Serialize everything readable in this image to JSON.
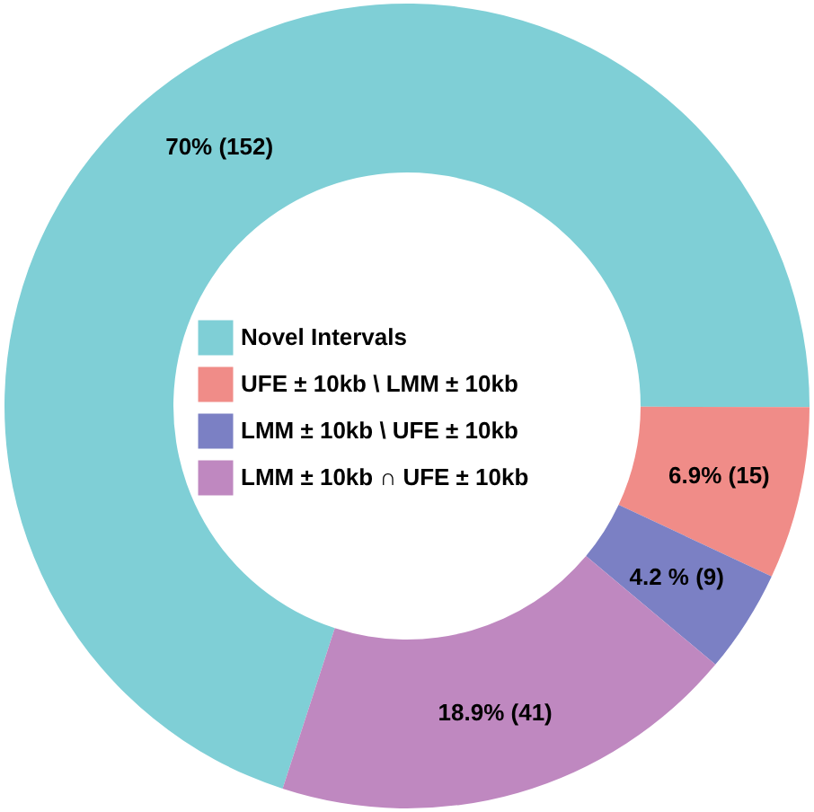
{
  "chart_data": {
    "type": "donut",
    "categories": [
      "Novel Intervals",
      "UFE ± 10kb \\ LMM ± 10kb",
      "LMM ± 10kb \\ UFE ± 10kb",
      "LMM ± 10kb ∩ UFE ± 10kb"
    ],
    "values": [
      152,
      15,
      9,
      41
    ],
    "colors": [
      "#7fcfd6",
      "#f08c88",
      "#7b80c4",
      "#bf88c0"
    ],
    "value_labels": [
      "70% (152)",
      "6.9% (15)",
      "4.2 % (9)",
      "18.9% (41)"
    ],
    "legend": "center"
  }
}
